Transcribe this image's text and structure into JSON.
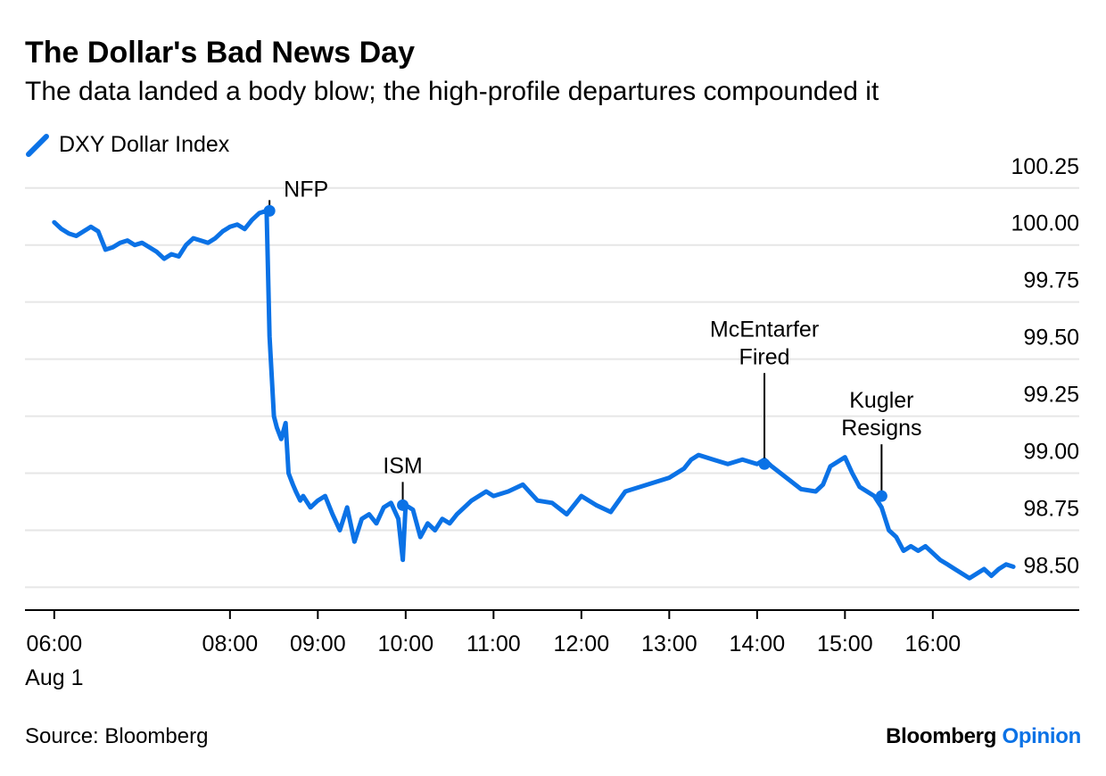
{
  "chart_data": {
    "type": "line",
    "title": "The Dollar's Bad News Day",
    "subtitle": "The data landed a body blow; the high-profile departures compounded it",
    "series": [
      {
        "name": "DXY Dollar Index",
        "color": "#0b72e6",
        "x": [
          "06:00",
          "06:05",
          "06:10",
          "06:15",
          "06:20",
          "06:25",
          "06:30",
          "06:35",
          "06:40",
          "06:45",
          "06:50",
          "06:55",
          "07:00",
          "07:05",
          "07:10",
          "07:15",
          "07:20",
          "07:25",
          "07:30",
          "07:35",
          "07:40",
          "07:45",
          "07:50",
          "07:55",
          "08:00",
          "08:05",
          "08:10",
          "08:15",
          "08:20",
          "08:25",
          "08:27",
          "08:30",
          "08:32",
          "08:35",
          "08:38",
          "08:40",
          "08:43",
          "08:45",
          "08:48",
          "08:50",
          "08:55",
          "09:00",
          "09:05",
          "09:10",
          "09:15",
          "09:20",
          "09:25",
          "09:30",
          "09:35",
          "09:40",
          "09:45",
          "09:50",
          "09:55",
          "09:58",
          "10:00",
          "10:05",
          "10:10",
          "10:15",
          "10:20",
          "10:25",
          "10:30",
          "10:35",
          "10:40",
          "10:45",
          "10:50",
          "10:55",
          "11:00",
          "11:10",
          "11:20",
          "11:30",
          "11:40",
          "11:50",
          "12:00",
          "12:10",
          "12:20",
          "12:30",
          "12:40",
          "12:50",
          "13:00",
          "13:10",
          "13:15",
          "13:20",
          "13:30",
          "13:40",
          "13:50",
          "14:00",
          "14:05",
          "14:10",
          "14:20",
          "14:30",
          "14:40",
          "14:45",
          "14:50",
          "15:00",
          "15:05",
          "15:10",
          "15:15",
          "15:20",
          "15:25",
          "15:30",
          "15:35",
          "15:40",
          "15:45",
          "15:50",
          "15:55",
          "16:00",
          "16:05",
          "16:10",
          "16:15",
          "16:20",
          "16:25",
          "16:30",
          "16:35",
          "16:40",
          "16:45",
          "16:50",
          "16:55"
        ],
        "values": [
          100.1,
          100.07,
          100.05,
          100.04,
          100.06,
          100.08,
          100.06,
          99.98,
          99.99,
          100.01,
          100.02,
          100.0,
          100.01,
          99.99,
          99.97,
          99.94,
          99.96,
          99.95,
          100.0,
          100.03,
          100.02,
          100.01,
          100.03,
          100.06,
          100.08,
          100.09,
          100.07,
          100.11,
          100.14,
          100.15,
          99.6,
          99.25,
          99.2,
          99.15,
          99.22,
          99.0,
          98.95,
          98.92,
          98.88,
          98.9,
          98.85,
          98.88,
          98.9,
          98.82,
          98.75,
          98.85,
          98.7,
          98.8,
          98.82,
          98.78,
          98.85,
          98.87,
          98.8,
          98.62,
          98.86,
          98.84,
          98.72,
          98.78,
          98.75,
          98.8,
          98.78,
          98.82,
          98.85,
          98.88,
          98.9,
          98.92,
          98.9,
          98.92,
          98.95,
          98.88,
          98.87,
          98.82,
          98.9,
          98.86,
          98.83,
          98.92,
          98.94,
          98.96,
          98.98,
          99.02,
          99.06,
          99.08,
          99.06,
          99.04,
          99.06,
          99.04,
          99.06,
          99.03,
          98.98,
          98.93,
          98.92,
          98.95,
          99.03,
          99.07,
          99.0,
          98.94,
          98.92,
          98.9,
          98.85,
          98.75,
          98.72,
          98.66,
          98.68,
          98.66,
          98.68,
          98.65,
          98.62,
          98.6,
          98.58,
          98.56,
          98.54,
          98.56,
          98.58,
          98.55,
          98.58,
          98.6,
          98.59
        ]
      }
    ],
    "xlim": [
      "05:40",
      "17:40"
    ],
    "ylim": [
      98.4,
      100.3
    ],
    "x_ticks": [
      {
        "time": "06:00",
        "label": "06:00",
        "sublabel": "Aug 1"
      },
      {
        "time": "08:00",
        "label": "08:00"
      },
      {
        "time": "09:00",
        "label": "09:00"
      },
      {
        "time": "10:00",
        "label": "10:00"
      },
      {
        "time": "11:00",
        "label": "11:00"
      },
      {
        "time": "12:00",
        "label": "12:00"
      },
      {
        "time": "13:00",
        "label": "13:00"
      },
      {
        "time": "14:00",
        "label": "14:00"
      },
      {
        "time": "15:00",
        "label": "15:00"
      },
      {
        "time": "16:00",
        "label": "16:00"
      }
    ],
    "y_ticks": [
      {
        "value": 100.25,
        "label": "100.25"
      },
      {
        "value": 100.0,
        "label": "100.00"
      },
      {
        "value": 99.75,
        "label": "99.75"
      },
      {
        "value": 99.5,
        "label": "99.50"
      },
      {
        "value": 99.25,
        "label": "99.25"
      },
      {
        "value": 99.0,
        "label": "99.00"
      },
      {
        "value": 98.75,
        "label": "98.75"
      },
      {
        "value": 98.5,
        "label": "98.50"
      }
    ],
    "annotations": [
      {
        "name": "nfp",
        "lines": [
          "NFP"
        ],
        "time": "08:27",
        "value": 100.15
      },
      {
        "name": "ism",
        "lines": [
          "ISM"
        ],
        "time": "09:58",
        "value": 98.86
      },
      {
        "name": "mcentarfer-fired",
        "lines": [
          "McEntarfer",
          "Fired"
        ],
        "time": "14:05",
        "value": 99.04
      },
      {
        "name": "kugler-resigns",
        "lines": [
          "Kugler",
          "Resigns"
        ],
        "time": "15:25",
        "value": 98.9
      }
    ],
    "grid": true,
    "legend": "top-left",
    "y_axis_position": "right"
  },
  "footer": {
    "source": "Source: Bloomberg",
    "brand_main": "Bloomberg",
    "brand_sub": "Opinion"
  }
}
